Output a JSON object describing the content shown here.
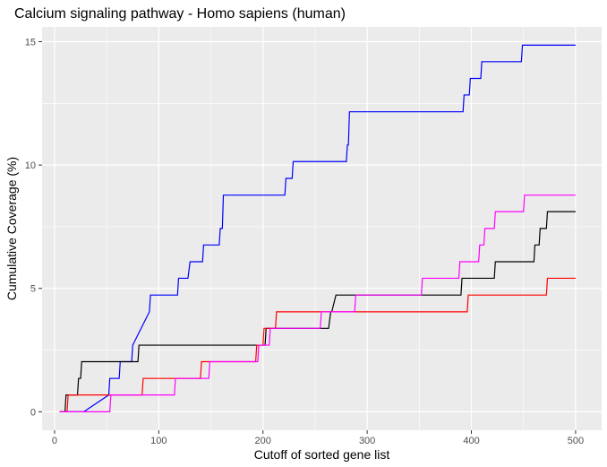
{
  "chart_data": {
    "type": "line",
    "title": "Calcium signaling pathway - Homo sapiens (human)",
    "xlabel": "Cutoff of sorted gene list",
    "ylabel": "Cumulative Coverage (%)",
    "xlim": [
      -12,
      525
    ],
    "ylim": [
      -0.75,
      15.6
    ],
    "xticks": [
      0,
      100,
      200,
      300,
      400,
      500
    ],
    "yticks": [
      0,
      5,
      10,
      15
    ],
    "xtick_labels": [
      "0",
      "100",
      "200",
      "300",
      "400",
      "500"
    ],
    "ytick_labels": [
      "0",
      "5",
      "10",
      "15"
    ],
    "grid": true,
    "legend": "none",
    "series": [
      {
        "color": "#0000ff",
        "x": [
          5,
          28,
          52,
          53,
          62,
          63,
          74,
          75,
          91,
          92,
          118,
          119,
          128,
          130,
          142,
          143,
          158,
          159,
          161,
          162,
          221,
          222,
          228,
          229,
          280,
          281,
          282,
          283,
          392,
          393,
          398,
          399,
          403,
          404,
          409,
          410,
          448,
          449,
          500
        ],
        "y": [
          0,
          0,
          0.68,
          1.35,
          1.35,
          2.03,
          2.03,
          2.7,
          4.05,
          4.73,
          4.73,
          5.41,
          5.41,
          6.08,
          6.08,
          6.76,
          6.76,
          7.43,
          7.43,
          8.78,
          8.78,
          9.46,
          9.46,
          10.14,
          10.14,
          10.81,
          10.81,
          12.16,
          12.16,
          12.84,
          12.84,
          13.51,
          13.51,
          13.51,
          13.51,
          14.19,
          14.19,
          14.86,
          14.86
        ]
      },
      {
        "color": "#000000",
        "x": [
          5,
          10,
          11,
          22,
          23,
          25,
          26,
          80,
          81,
          202,
          203,
          262,
          263,
          265,
          266,
          270,
          271,
          390,
          391,
          422,
          423,
          460,
          461,
          465,
          466,
          472,
          473,
          500
        ],
        "y": [
          0,
          0,
          0.68,
          0.68,
          1.35,
          1.35,
          2.03,
          2.03,
          2.7,
          2.7,
          3.38,
          3.38,
          3.38,
          4.05,
          4.05,
          4.73,
          4.73,
          4.73,
          5.41,
          5.41,
          6.08,
          6.08,
          6.76,
          6.76,
          7.43,
          7.43,
          8.11,
          8.11
        ]
      },
      {
        "color": "#ff0000",
        "x": [
          5,
          12,
          13,
          84,
          85,
          140,
          141,
          193,
          194,
          200,
          201,
          212,
          213,
          396,
          397,
          472,
          473,
          500
        ],
        "y": [
          0,
          0,
          0.68,
          0.68,
          1.35,
          1.35,
          2.03,
          2.03,
          2.7,
          2.7,
          3.38,
          3.38,
          4.05,
          4.05,
          4.73,
          4.73,
          5.41,
          5.41
        ]
      },
      {
        "color": "#ff00ff",
        "x": [
          5,
          53,
          54,
          115,
          116,
          148,
          149,
          195,
          196,
          206,
          207,
          255,
          256,
          288,
          289,
          352,
          353,
          388,
          389,
          407,
          408,
          412,
          413,
          422,
          423,
          450,
          451,
          500
        ],
        "y": [
          0,
          0,
          0.68,
          0.68,
          1.35,
          1.35,
          2.03,
          2.03,
          2.7,
          2.7,
          3.38,
          3.38,
          4.05,
          4.05,
          4.73,
          4.73,
          5.41,
          5.41,
          6.08,
          6.08,
          6.76,
          6.76,
          7.43,
          7.43,
          8.11,
          8.11,
          8.78,
          8.78
        ]
      }
    ]
  }
}
